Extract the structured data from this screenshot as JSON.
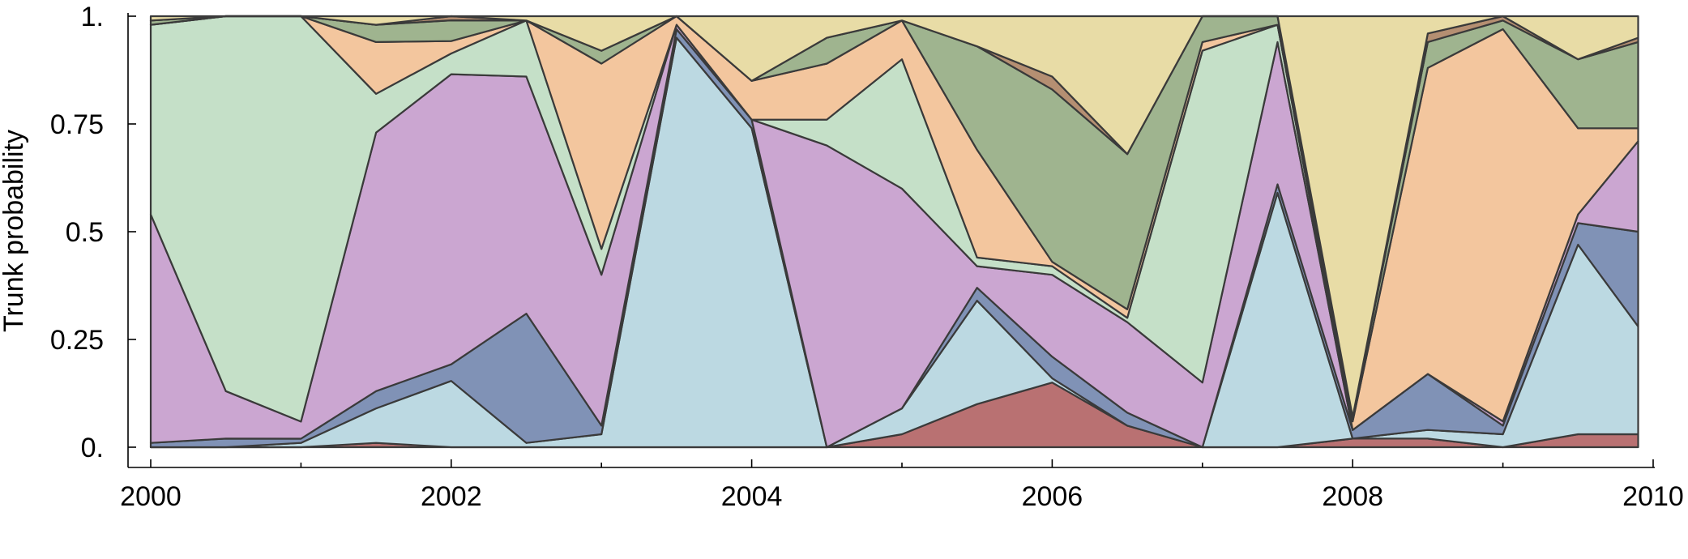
{
  "chart_data": {
    "type": "area",
    "stacked": true,
    "ylabel": "Trunk probability",
    "xlim": [
      2000,
      2010
    ],
    "ylim": [
      0,
      1
    ],
    "x_ticks": [
      2000,
      2002,
      2004,
      2006,
      2008,
      2010
    ],
    "x_tick_labels": [
      "2000",
      "2002",
      "2004",
      "2006",
      "2008",
      "2010"
    ],
    "x_minor_ticks": [
      2001,
      2003,
      2005,
      2007,
      2009
    ],
    "y_ticks": [
      0,
      0.25,
      0.5,
      0.75,
      1
    ],
    "y_tick_labels": [
      "0.",
      "0.25",
      "0.5",
      "0.75",
      "1."
    ],
    "x": [
      2000.0,
      2000.5,
      2001.0,
      2001.5,
      2002.0,
      2002.5,
      2003.0,
      2003.5,
      2004.0,
      2004.5,
      2005.0,
      2005.5,
      2006.0,
      2006.5,
      2007.0,
      2007.5,
      2008.0,
      2008.5,
      2009.0,
      2009.5,
      2009.9
    ],
    "series": [
      {
        "color": "#b97172",
        "values": [
          0.0,
          0.0,
          0.0,
          0.01,
          0.0,
          0.0,
          0.0,
          0.0,
          0.0,
          0.0,
          0.03,
          0.1,
          0.15,
          0.05,
          0.0,
          0.0,
          0.02,
          0.02,
          0.0,
          0.03,
          0.03
        ]
      },
      {
        "color": "#bcd9e2",
        "values": [
          0.0,
          0.0,
          0.01,
          0.08,
          0.16,
          0.01,
          0.03,
          0.95,
          0.74,
          0.0,
          0.06,
          0.24,
          0.01,
          0.0,
          0.0,
          0.59,
          0.0,
          0.02,
          0.03,
          0.44,
          0.25
        ]
      },
      {
        "color": "#8092b6",
        "values": [
          0.01,
          0.02,
          0.01,
          0.04,
          0.04,
          0.3,
          0.02,
          0.02,
          0.02,
          0.0,
          0.0,
          0.03,
          0.05,
          0.03,
          0.0,
          0.02,
          0.02,
          0.13,
          0.02,
          0.05,
          0.22
        ]
      },
      {
        "color": "#cba6d1",
        "values": [
          0.53,
          0.11,
          0.04,
          0.6,
          0.7,
          0.55,
          0.35,
          0.01,
          0.0,
          0.7,
          0.51,
          0.05,
          0.19,
          0.21,
          0.15,
          0.33,
          0.0,
          0.0,
          0.01,
          0.02,
          0.21
        ]
      },
      {
        "color": "#c5e0c8",
        "values": [
          0.44,
          0.87,
          0.95,
          0.09,
          0.05,
          0.13,
          0.06,
          0.0,
          0.0,
          0.06,
          0.3,
          0.02,
          0.02,
          0.01,
          0.77,
          0.04,
          0.0,
          0.0,
          0.0,
          0.0,
          0.0
        ]
      },
      {
        "color": "#f3c69e",
        "values": [
          0.0,
          0.0,
          0.0,
          0.12,
          0.03,
          0.0,
          0.43,
          0.02,
          0.09,
          0.13,
          0.09,
          0.25,
          0.01,
          0.02,
          0.02,
          0.0,
          0.02,
          0.71,
          0.91,
          0.2,
          0.03
        ]
      },
      {
        "color": "#9fb48f",
        "values": [
          0.01,
          0.0,
          0.0,
          0.04,
          0.05,
          0.0,
          0.03,
          0.0,
          0.0,
          0.06,
          0.0,
          0.24,
          0.4,
          0.36,
          0.06,
          0.02,
          0.01,
          0.06,
          0.02,
          0.16,
          0.2
        ]
      },
      {
        "color": "#b58f72",
        "values": [
          0.0,
          0.0,
          0.0,
          0.0,
          0.01,
          0.0,
          0.0,
          0.0,
          0.0,
          0.0,
          0.0,
          0.0,
          0.03,
          0.0,
          0.0,
          0.0,
          0.0,
          0.02,
          0.01,
          0.0,
          0.01
        ]
      },
      {
        "color": "#e8dca6",
        "values": [
          0.01,
          0.0,
          0.0,
          0.02,
          0.0,
          0.01,
          0.08,
          0.0,
          0.15,
          0.05,
          0.01,
          0.07,
          0.14,
          0.32,
          0.0,
          0.0,
          0.93,
          0.04,
          0.0,
          0.1,
          0.05
        ]
      }
    ]
  }
}
